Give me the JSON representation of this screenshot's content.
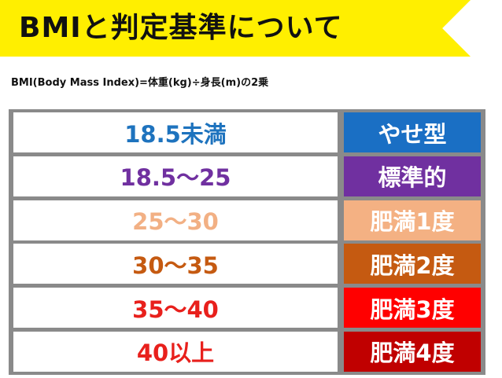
{
  "header": {
    "title": "BMIと判定基準について"
  },
  "formula": "BMI(Body Mass Index)=体重(kg)÷身長(m)の2乗",
  "rows": [
    {
      "range": "18.5未満",
      "category": "やせ型",
      "range_color": "#1e73be",
      "category_color": "#1a6fc4"
    },
    {
      "range": "18.5～25",
      "category": "標準的",
      "range_color": "#7030a0",
      "category_color": "#7030a0"
    },
    {
      "range": "25～30",
      "category": "肥満1度",
      "range_color": "#f2b084",
      "category_color": "#f4b183"
    },
    {
      "range": "30～35",
      "category": "肥満2度",
      "range_color": "#c55a11",
      "category_color": "#c55a11"
    },
    {
      "range": "35～40",
      "category": "肥満3度",
      "range_color": "#e8201c",
      "category_color": "#ff0000"
    },
    {
      "range": "40以上",
      "category": "肥満4度",
      "range_color": "#e8201c",
      "category_color": "#c00000"
    }
  ]
}
